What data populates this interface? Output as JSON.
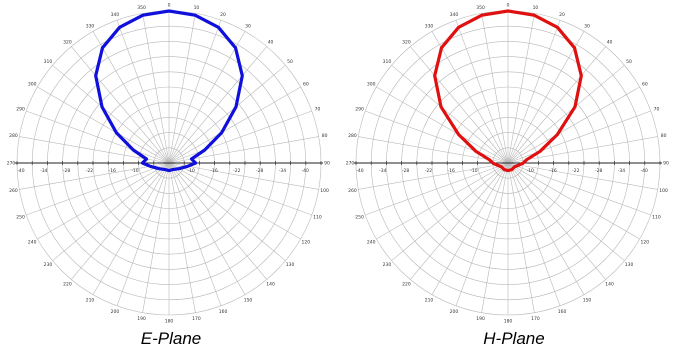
{
  "chart_data": [
    {
      "type": "polar-line",
      "caption": "E-Plane",
      "series_color": "#1010dd",
      "angle_labels": [
        "0",
        "10",
        "20",
        "30",
        "40",
        "50",
        "60",
        "70",
        "80",
        "90",
        "100",
        "110",
        "120",
        "130",
        "140",
        "150",
        "160",
        "170",
        "180",
        "190",
        "200",
        "210",
        "220",
        "230",
        "240",
        "250",
        "260",
        "270",
        "280",
        "290",
        "300",
        "310",
        "320",
        "330",
        "340",
        "350"
      ],
      "radial_labels_left": [
        "-40",
        "-34",
        "-28",
        "-22",
        "-16",
        "-10"
      ],
      "radial_labels_right": [
        "-10",
        "-16",
        "-22",
        "-28",
        "-34",
        "-40"
      ],
      "radial_range_db": [
        -40,
        0
      ],
      "pattern_db": [
        [
          0,
          0
        ],
        [
          10,
          -0.5
        ],
        [
          20,
          -2
        ],
        [
          30,
          -5
        ],
        [
          40,
          -10
        ],
        [
          50,
          -17
        ],
        [
          60,
          -24
        ],
        [
          70,
          -30
        ],
        [
          80,
          -34
        ],
        [
          90,
          -33
        ],
        [
          100,
          -35
        ],
        [
          120,
          -37
        ],
        [
          150,
          -38
        ],
        [
          180,
          -38
        ],
        [
          210,
          -38
        ],
        [
          240,
          -37
        ],
        [
          260,
          -35
        ],
        [
          270,
          -33
        ],
        [
          280,
          -34
        ],
        [
          290,
          -30
        ],
        [
          300,
          -24
        ],
        [
          310,
          -17
        ],
        [
          320,
          -10
        ],
        [
          330,
          -5
        ],
        [
          340,
          -2
        ],
        [
          350,
          -0.5
        ],
        [
          360,
          0
        ]
      ]
    },
    {
      "type": "polar-line",
      "caption": "H-Plane",
      "series_color": "#e01010",
      "angle_labels": [
        "0",
        "10",
        "20",
        "30",
        "40",
        "50",
        "60",
        "70",
        "80",
        "90",
        "100",
        "110",
        "120",
        "130",
        "140",
        "150",
        "160",
        "170",
        "180",
        "190",
        "200",
        "210",
        "220",
        "230",
        "240",
        "250",
        "260",
        "270",
        "280",
        "290",
        "300",
        "310",
        "320",
        "330",
        "340",
        "350"
      ],
      "radial_labels_left": [
        "-40",
        "-34",
        "-28",
        "-22",
        "-16",
        "-10"
      ],
      "radial_labels_right": [
        "-10",
        "-16",
        "-22",
        "-28",
        "-34",
        "-40"
      ],
      "radial_range_db": [
        -40,
        0
      ],
      "pattern_db": [
        [
          0,
          0
        ],
        [
          10,
          -0.5
        ],
        [
          20,
          -2
        ],
        [
          30,
          -5
        ],
        [
          40,
          -10
        ],
        [
          50,
          -17
        ],
        [
          60,
          -25
        ],
        [
          70,
          -31
        ],
        [
          80,
          -35
        ],
        [
          90,
          -36
        ],
        [
          100,
          -37
        ],
        [
          120,
          -38
        ],
        [
          150,
          -38
        ],
        [
          180,
          -38
        ],
        [
          210,
          -38
        ],
        [
          240,
          -38
        ],
        [
          260,
          -37
        ],
        [
          270,
          -36
        ],
        [
          280,
          -35
        ],
        [
          290,
          -31
        ],
        [
          300,
          -25
        ],
        [
          310,
          -17
        ],
        [
          320,
          -10
        ],
        [
          330,
          -5
        ],
        [
          340,
          -2
        ],
        [
          350,
          -0.5
        ],
        [
          360,
          0
        ]
      ]
    }
  ]
}
